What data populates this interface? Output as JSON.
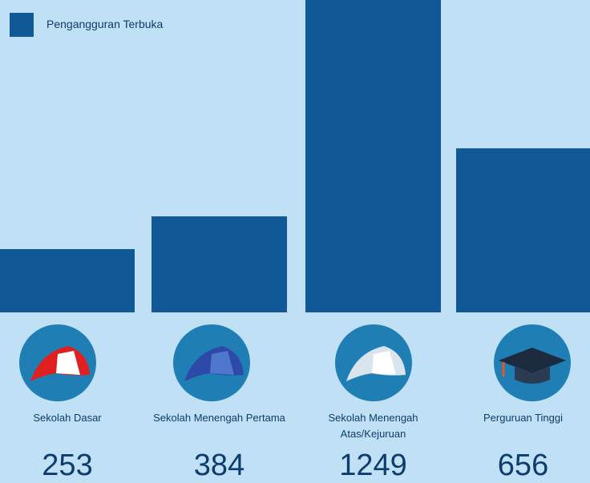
{
  "chart_data": {
    "type": "bar",
    "legend": "Pengangguran Terbuka",
    "color": "#115896",
    "categories": [
      "Sekolah Dasar",
      "Sekolah Menengah Pertama",
      "Sekolah Menengah Atas/Kejuruan",
      "Perguruan Tinggi"
    ],
    "values": [
      253,
      384,
      1249,
      656
    ]
  }
}
